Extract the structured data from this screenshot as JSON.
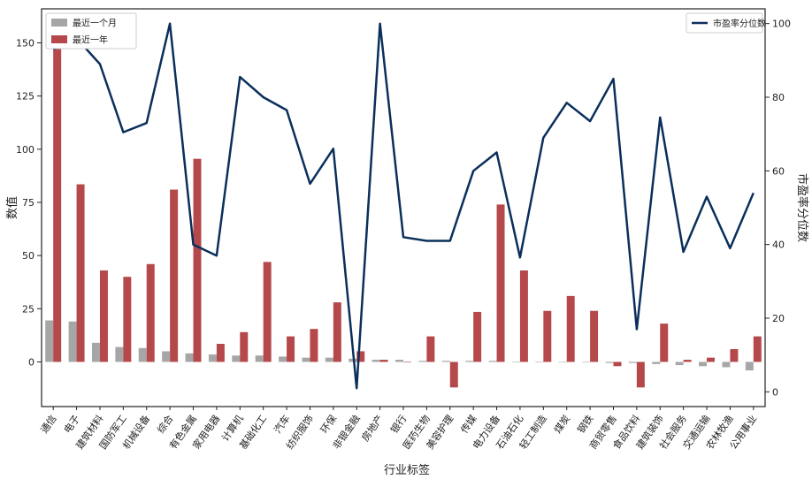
{
  "chart_data": {
    "type": "bar+line",
    "xlabel": "行业标签",
    "ylabel": "数值",
    "y2label": "市盈率分位数",
    "ylim": [
      -21,
      166
    ],
    "y2lim": [
      -4,
      104
    ],
    "yticks": [
      0,
      25,
      50,
      75,
      100,
      125,
      150
    ],
    "y2ticks": [
      0,
      20,
      40,
      60,
      80,
      100
    ],
    "legend_left_position": "upper-left",
    "legend_right_position": "upper-right",
    "colors": {
      "month": "#a6a6a6",
      "year": "#b5484a",
      "line": "#0b2f5b"
    },
    "categories": [
      "通信",
      "电子",
      "建筑材料",
      "国防军工",
      "机械设备",
      "综合",
      "有色金属",
      "家用电器",
      "计算机",
      "基础化工",
      "汽车",
      "纺织服饰",
      "环保",
      "非银金融",
      "房地产",
      "银行",
      "医药生物",
      "美容护理",
      "传媒",
      "电力设备",
      "石油石化",
      "轻工制造",
      "煤炭",
      "钢铁",
      "商贸零售",
      "食品饮料",
      "建筑装饰",
      "社会服务",
      "交通运输",
      "农林牧渔",
      "公用事业"
    ],
    "series": [
      {
        "name": "最近一个月",
        "kind": "bar",
        "values": [
          19.5,
          19.0,
          9.0,
          7.0,
          6.5,
          5.0,
          4.0,
          3.5,
          3.0,
          3.0,
          2.5,
          2.0,
          2.0,
          1.5,
          1.0,
          1.0,
          0.5,
          0.5,
          0.5,
          0.5,
          0.0,
          0.0,
          0.0,
          0.0,
          -0.5,
          -0.5,
          -1.0,
          -1.5,
          -2.0,
          -2.5,
          -4.0
        ]
      },
      {
        "name": "最近一年",
        "kind": "bar",
        "values": [
          158,
          83.5,
          43,
          40,
          46,
          81,
          95.5,
          8.5,
          14,
          47,
          12,
          15.5,
          28,
          5,
          1,
          0,
          12,
          -12,
          23.5,
          74,
          43,
          24,
          31,
          24,
          -2,
          -12,
          18,
          1,
          2,
          6,
          12
        ]
      },
      {
        "name": "市盈率分位数",
        "kind": "line",
        "axis": "right",
        "values": [
          93,
          96,
          89,
          70.5,
          73,
          100,
          40,
          37,
          85.5,
          80,
          76.5,
          56.5,
          66,
          1,
          100,
          42,
          41,
          41,
          60,
          65,
          36.5,
          69,
          78.5,
          73.5,
          85,
          17,
          74.5,
          38,
          53,
          39,
          54
        ]
      }
    ]
  }
}
